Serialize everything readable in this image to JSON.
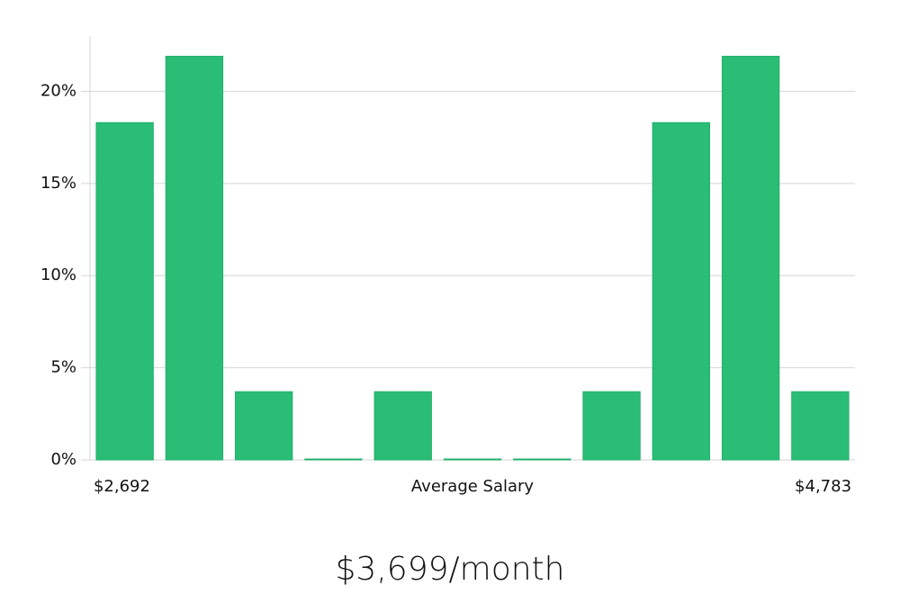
{
  "chart_data": {
    "type": "bar",
    "x_label": "Average Salary",
    "subtitle": "$3,699/month",
    "categories": [
      "$2,692",
      null,
      null,
      null,
      null,
      null,
      null,
      null,
      null,
      null,
      "$4,783"
    ],
    "values": [
      18.3,
      21.9,
      3.7,
      0,
      3.7,
      0,
      0,
      3.7,
      18.3,
      21.9,
      3.7
    ],
    "color": "#2abd75",
    "ylim": [
      0,
      23
    ],
    "yticks": [
      {
        "value": 0,
        "label": "0%"
      },
      {
        "value": 5,
        "label": "5%"
      },
      {
        "value": 10,
        "label": "10%"
      },
      {
        "value": 15,
        "label": "15%"
      },
      {
        "value": 20,
        "label": "20%"
      }
    ],
    "grid": true
  }
}
